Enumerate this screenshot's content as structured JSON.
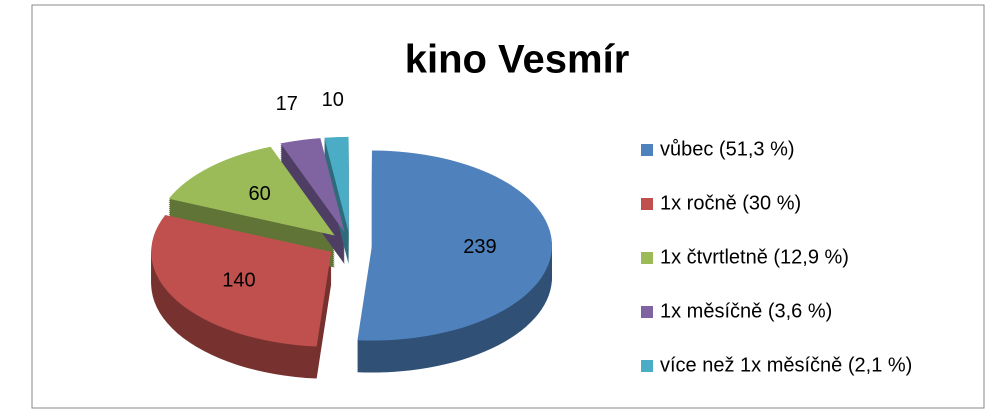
{
  "chart_data": {
    "type": "pie",
    "title": "kino Vesmír",
    "categories": [
      "vůbec (51,3 %)",
      "1x ročně (30 %)",
      "1x čtvrtletně (12,9 %)",
      "1x měsíčně (3,6 %)",
      "více než 1x měsíčně (2,1 %)"
    ],
    "values": [
      239,
      140,
      60,
      17,
      10
    ],
    "colors": [
      "#4f81bd",
      "#c0504d",
      "#9bbb59",
      "#8064a2",
      "#4bacc6"
    ],
    "legend": "right"
  }
}
